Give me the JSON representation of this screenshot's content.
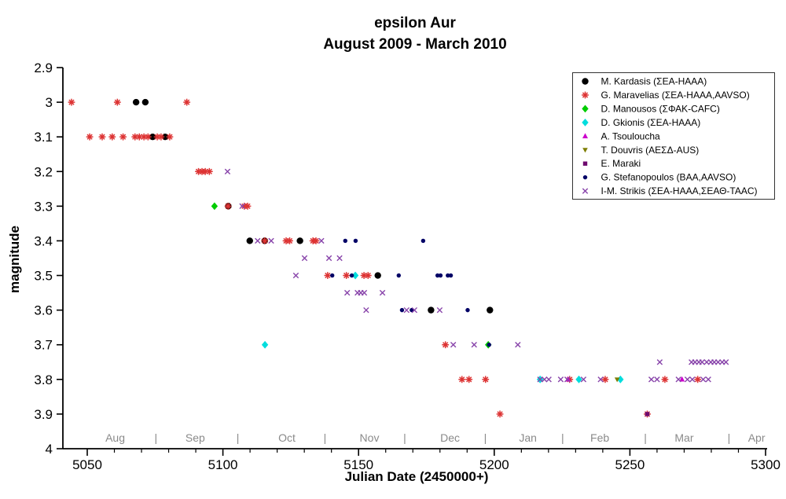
{
  "header": {
    "title": "epsilon Aur",
    "subtitle": "August 2009 - March 2010"
  },
  "chart_data": {
    "type": "scatter",
    "title": "epsilon Aur",
    "subtitle": "August 2009 - March 2010",
    "xlabel": "Julian Date (2450000+)",
    "ylabel": "magnitude",
    "xlim": [
      5041,
      5300
    ],
    "ylim_top_to_bottom": [
      2.9,
      4.0
    ],
    "y_axis_inverted": true,
    "grid": false,
    "legend_position": "top-right",
    "x_ticks_major": [
      5050,
      5100,
      5150,
      5200,
      5250,
      5300
    ],
    "x_tick_minor_step": 10,
    "y_ticks": [
      {
        "value": 2.9,
        "label": "2.9"
      },
      {
        "value": 3.0,
        "label": "3"
      },
      {
        "value": 3.1,
        "label": "3.1"
      },
      {
        "value": 3.2,
        "label": "3.2"
      },
      {
        "value": 3.3,
        "label": "3.3"
      },
      {
        "value": 3.4,
        "label": "3.4"
      },
      {
        "value": 3.5,
        "label": "3.5"
      },
      {
        "value": 3.6,
        "label": "3.6"
      },
      {
        "value": 3.7,
        "label": "3.7"
      },
      {
        "value": 3.8,
        "label": "3.8"
      },
      {
        "value": 3.9,
        "label": "3.9"
      },
      {
        "value": 4.0,
        "label": "4"
      }
    ],
    "month_labels": [
      {
        "label": "Aug",
        "jd": 5060.3
      },
      {
        "label": "Sep",
        "jd": 5089.8
      },
      {
        "label": "Oct",
        "jd": 5123.6
      },
      {
        "label": "Nov",
        "jd": 5154.0
      },
      {
        "label": "Dec",
        "jd": 5183.7
      },
      {
        "label": "Jan",
        "jd": 5212.4
      },
      {
        "label": "Feb",
        "jd": 5238.9
      },
      {
        "label": "Mar",
        "jd": 5270.0
      },
      {
        "label": "Apr",
        "jd": 5296.7
      }
    ],
    "month_separators_jd": [
      5075.3,
      5105.5,
      5137.6,
      5167.0,
      5196.7,
      5225.2,
      5255.7,
      5286.5
    ],
    "series": [
      {
        "name": "M. Kardasis (ΣΕΑ-ΗΑΑΑ)",
        "marker": "circle",
        "color": "#000000",
        "points": [
          [
            5068.0,
            3.0
          ],
          [
            5071.4,
            3.0
          ],
          [
            5074.1,
            3.1
          ],
          [
            5078.7,
            3.1
          ],
          [
            5102.0,
            3.3
          ],
          [
            5109.9,
            3.4
          ],
          [
            5115.4,
            3.4
          ],
          [
            5128.4,
            3.4
          ],
          [
            5157.1,
            3.5
          ],
          [
            5176.7,
            3.6
          ],
          [
            5198.4,
            3.6
          ]
        ]
      },
      {
        "name": "G. Maravelias (ΣΕΑ-ΗΑΑΑ,AAVSO)",
        "marker": "asterisk",
        "color": "#dd3333",
        "points": [
          [
            5044.2,
            3.0
          ],
          [
            5061.1,
            3.0
          ],
          [
            5086.7,
            3.0
          ],
          [
            5050.9,
            3.1
          ],
          [
            5055.5,
            3.1
          ],
          [
            5059.2,
            3.1
          ],
          [
            5063.2,
            3.1
          ],
          [
            5067.6,
            3.1
          ],
          [
            5069.2,
            3.1
          ],
          [
            5070.9,
            3.1
          ],
          [
            5072.4,
            3.1
          ],
          [
            5075.8,
            3.1
          ],
          [
            5077.2,
            3.1
          ],
          [
            5080.4,
            3.1
          ],
          [
            5091.0,
            3.2
          ],
          [
            5092.3,
            3.2
          ],
          [
            5093.5,
            3.2
          ],
          [
            5095.0,
            3.2
          ],
          [
            5101.9,
            3.3
          ],
          [
            5107.9,
            3.3
          ],
          [
            5109.1,
            3.3
          ],
          [
            5115.4,
            3.4
          ],
          [
            5123.3,
            3.4
          ],
          [
            5124.6,
            3.4
          ],
          [
            5133.2,
            3.4
          ],
          [
            5134.3,
            3.4
          ],
          [
            5138.6,
            3.5
          ],
          [
            5145.5,
            3.5
          ],
          [
            5152.0,
            3.5
          ],
          [
            5153.5,
            3.5
          ],
          [
            5182.0,
            3.7
          ],
          [
            5188.1,
            3.8
          ],
          [
            5190.7,
            3.8
          ],
          [
            5196.8,
            3.8
          ],
          [
            5227.8,
            3.8
          ],
          [
            5240.9,
            3.8
          ],
          [
            5262.9,
            3.8
          ],
          [
            5275.0,
            3.8
          ],
          [
            5202.1,
            3.9
          ],
          [
            5256.4,
            3.9
          ]
        ]
      },
      {
        "name": "D. Manousos (ΣΦΑΚ-CAFC)",
        "marker": "diamond",
        "color": "#00cc00",
        "points": [
          [
            5096.9,
            3.3
          ],
          [
            5197.8,
            3.7
          ]
        ]
      },
      {
        "name": "D. Gkionis (ΣΕΑ-ΗΑΑΑ)",
        "marker": "diamond",
        "color": "#00dddd",
        "points": [
          [
            5115.5,
            3.7
          ],
          [
            5148.8,
            3.5
          ],
          [
            5216.9,
            3.8
          ],
          [
            5231.2,
            3.8
          ],
          [
            5246.5,
            3.8
          ]
        ]
      },
      {
        "name": "A. Tsouloucha",
        "marker": "triangle-up",
        "color": "#cc00cc",
        "points": [
          [
            5227.2,
            3.8
          ],
          [
            5269.2,
            3.8
          ]
        ]
      },
      {
        "name": "T. Douvris (ΑΕΣΔ-AUS)",
        "marker": "triangle-down",
        "color": "#7d7d00",
        "points": [
          [
            5245.3,
            3.8
          ]
        ]
      },
      {
        "name": "E. Maraki",
        "marker": "square",
        "color": "#6e0a6e",
        "points": [
          [
            5256.4,
            3.9
          ]
        ]
      },
      {
        "name": "G. Stefanopoulos (BAA,AAVSO)",
        "marker": "dot",
        "color": "#000066",
        "points": [
          [
            5145.1,
            3.4
          ],
          [
            5148.9,
            3.4
          ],
          [
            5173.8,
            3.4
          ],
          [
            5140.3,
            3.5
          ],
          [
            5147.5,
            3.5
          ],
          [
            5164.8,
            3.5
          ],
          [
            5179.1,
            3.5
          ],
          [
            5180.2,
            3.5
          ],
          [
            5182.9,
            3.5
          ],
          [
            5184.0,
            3.5
          ],
          [
            5166.0,
            3.6
          ],
          [
            5169.6,
            3.6
          ],
          [
            5190.2,
            3.6
          ],
          [
            5198.1,
            3.7
          ]
        ]
      },
      {
        "name": "I-M. Strikis (ΣΕΑ-ΗΑΑΑ,ΣΕΑΘ-ΤΑΑC)",
        "marker": "cross",
        "color": "#8844aa",
        "points": [
          [
            5101.7,
            3.2
          ],
          [
            5107.1,
            3.3
          ],
          [
            5112.8,
            3.4
          ],
          [
            5117.8,
            3.4
          ],
          [
            5136.3,
            3.4
          ],
          [
            5130.1,
            3.45
          ],
          [
            5139.1,
            3.45
          ],
          [
            5143.0,
            3.45
          ],
          [
            5126.9,
            3.5
          ],
          [
            5145.8,
            3.55
          ],
          [
            5149.6,
            3.55
          ],
          [
            5150.8,
            3.55
          ],
          [
            5152.1,
            3.55
          ],
          [
            5158.8,
            3.55
          ],
          [
            5152.8,
            3.6
          ],
          [
            5167.7,
            3.6
          ],
          [
            5170.6,
            3.6
          ],
          [
            5179.9,
            3.6
          ],
          [
            5184.9,
            3.7
          ],
          [
            5192.6,
            3.7
          ],
          [
            5208.7,
            3.7
          ],
          [
            5261.0,
            3.75
          ],
          [
            5272.7,
            3.75
          ],
          [
            5274.0,
            3.75
          ],
          [
            5275.4,
            3.75
          ],
          [
            5276.6,
            3.75
          ],
          [
            5278.3,
            3.75
          ],
          [
            5279.8,
            3.75
          ],
          [
            5281.1,
            3.75
          ],
          [
            5282.5,
            3.75
          ],
          [
            5284.0,
            3.75
          ],
          [
            5285.4,
            3.75
          ],
          [
            5216.9,
            3.8
          ],
          [
            5218.5,
            3.8
          ],
          [
            5220.1,
            3.8
          ],
          [
            5224.5,
            3.8
          ],
          [
            5226.9,
            3.8
          ],
          [
            5232.9,
            3.8
          ],
          [
            5239.2,
            3.8
          ],
          [
            5257.9,
            3.8
          ],
          [
            5260.0,
            3.8
          ],
          [
            5267.9,
            3.8
          ],
          [
            5271.2,
            3.8
          ],
          [
            5273.0,
            3.8
          ],
          [
            5277.0,
            3.8
          ],
          [
            5278.9,
            3.8
          ]
        ]
      }
    ]
  },
  "colors": {
    "background": "#ffffff",
    "axis": "#000000",
    "month_text": "#8a8a8a",
    "legend_border": "#333333"
  }
}
